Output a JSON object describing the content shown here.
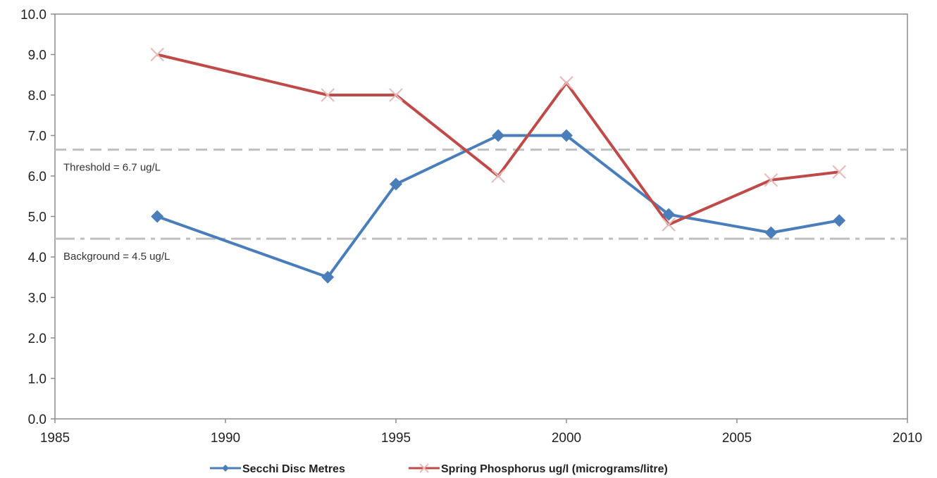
{
  "chart_data": {
    "type": "line",
    "title": "",
    "xlabel": "",
    "ylabel": "",
    "xlim": [
      1985,
      2010
    ],
    "ylim": [
      0,
      10
    ],
    "x_ticks": [
      1985,
      1990,
      1995,
      2000,
      2005,
      2010
    ],
    "x_tick_labels": [
      "1985",
      "1990",
      "1995",
      "2000",
      "2005",
      "2010"
    ],
    "y_ticks": [
      0,
      1,
      2,
      3,
      4,
      5,
      6,
      7,
      8,
      9,
      10
    ],
    "y_tick_labels": [
      "0.0",
      "1.0",
      "2.0",
      "3.0",
      "4.0",
      "5.0",
      "6.0",
      "7.0",
      "8.0",
      "9.0",
      "10.0"
    ],
    "grid": false,
    "legend_position": "bottom",
    "series": [
      {
        "name": "Secchi Disc Metres",
        "color": "#4A7EBB",
        "marker": "diamond",
        "x": [
          1988,
          1993,
          1995,
          1998,
          2000,
          2003,
          2006,
          2008
        ],
        "y": [
          5.0,
          3.5,
          5.8,
          7.0,
          7.0,
          5.05,
          4.6,
          4.9
        ]
      },
      {
        "name": "Spring Phosphorus ug/l (micrograms/litre)",
        "color": "#BE4B48",
        "marker_color": "#E6B9B8",
        "marker": "x",
        "x": [
          1988,
          1993,
          1995,
          1998,
          2000,
          2003,
          2006,
          2008
        ],
        "y": [
          9.0,
          8.0,
          8.0,
          6.0,
          8.3,
          4.8,
          5.9,
          6.1
        ]
      }
    ],
    "reference_lines": [
      {
        "label": "Threshold = 6.7 ug/L",
        "value": 6.65,
        "style": "dashed",
        "color": "#BFBFBF"
      },
      {
        "label": "Background = 4.5 ug/L",
        "value": 4.45,
        "style": "dashdot",
        "color": "#BFBFBF"
      }
    ]
  }
}
